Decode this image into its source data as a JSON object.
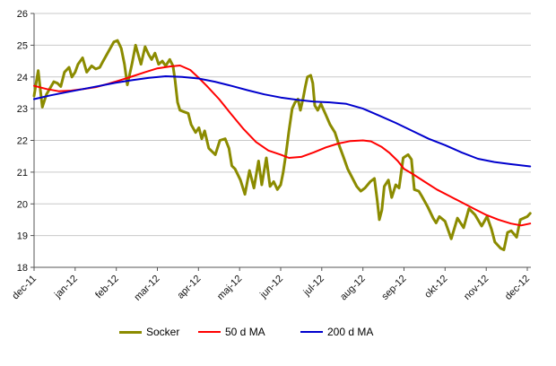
{
  "chart_data": {
    "type": "line",
    "x_axis": {
      "categories": [
        "dec-11",
        "jan-12",
        "feb-12",
        "mar-12",
        "apr-12",
        "maj-12",
        "jun-12",
        "jul-12",
        "aug-12",
        "sep-12",
        "okt-12",
        "nov-12",
        "dec-12"
      ]
    },
    "y_axis": {
      "min": 18,
      "max": 26,
      "step": 1,
      "ticks": [
        18,
        19,
        20,
        21,
        22,
        23,
        24,
        25,
        26
      ]
    },
    "grid": true,
    "legend_position": "bottom",
    "colors": {
      "grid": "#c9c9c9",
      "axis": "#555555"
    },
    "series": [
      {
        "name": "Socker",
        "color": "#8B8B00",
        "stroke_width": 3,
        "points": [
          [
            0,
            23.4
          ],
          [
            0.06,
            23.9
          ],
          [
            0.1,
            24.2
          ],
          [
            0.2,
            23.05
          ],
          [
            0.3,
            23.45
          ],
          [
            0.48,
            23.85
          ],
          [
            0.57,
            23.8
          ],
          [
            0.65,
            23.7
          ],
          [
            0.74,
            24.15
          ],
          [
            0.85,
            24.3
          ],
          [
            0.92,
            24.0
          ],
          [
            1.0,
            24.15
          ],
          [
            1.07,
            24.4
          ],
          [
            1.18,
            24.6
          ],
          [
            1.28,
            24.15
          ],
          [
            1.4,
            24.35
          ],
          [
            1.5,
            24.25
          ],
          [
            1.6,
            24.3
          ],
          [
            1.68,
            24.5
          ],
          [
            1.81,
            24.8
          ],
          [
            1.94,
            25.1
          ],
          [
            2.03,
            25.15
          ],
          [
            2.12,
            24.9
          ],
          [
            2.2,
            24.4
          ],
          [
            2.27,
            23.75
          ],
          [
            2.38,
            24.4
          ],
          [
            2.47,
            25.0
          ],
          [
            2.6,
            24.4
          ],
          [
            2.7,
            24.95
          ],
          [
            2.79,
            24.7
          ],
          [
            2.86,
            24.55
          ],
          [
            2.94,
            24.75
          ],
          [
            3.03,
            24.4
          ],
          [
            3.12,
            24.5
          ],
          [
            3.2,
            24.35
          ],
          [
            3.3,
            24.55
          ],
          [
            3.38,
            24.35
          ],
          [
            3.43,
            23.9
          ],
          [
            3.49,
            23.2
          ],
          [
            3.55,
            22.95
          ],
          [
            3.65,
            22.9
          ],
          [
            3.75,
            22.85
          ],
          [
            3.82,
            22.5
          ],
          [
            3.93,
            22.25
          ],
          [
            4.01,
            22.4
          ],
          [
            4.08,
            22.05
          ],
          [
            4.15,
            22.3
          ],
          [
            4.25,
            21.75
          ],
          [
            4.41,
            21.55
          ],
          [
            4.52,
            22.0
          ],
          [
            4.65,
            22.05
          ],
          [
            4.74,
            21.75
          ],
          [
            4.81,
            21.2
          ],
          [
            4.89,
            21.1
          ],
          [
            5.02,
            20.75
          ],
          [
            5.13,
            20.3
          ],
          [
            5.24,
            21.05
          ],
          [
            5.35,
            20.5
          ],
          [
            5.46,
            21.35
          ],
          [
            5.54,
            20.6
          ],
          [
            5.65,
            21.45
          ],
          [
            5.74,
            20.55
          ],
          [
            5.83,
            20.7
          ],
          [
            5.92,
            20.45
          ],
          [
            6.0,
            20.6
          ],
          [
            6.06,
            21.0
          ],
          [
            6.13,
            21.6
          ],
          [
            6.2,
            22.3
          ],
          [
            6.28,
            23.0
          ],
          [
            6.35,
            23.2
          ],
          [
            6.42,
            23.3
          ],
          [
            6.48,
            22.95
          ],
          [
            6.55,
            23.35
          ],
          [
            6.6,
            23.7
          ],
          [
            6.65,
            24.0
          ],
          [
            6.73,
            24.05
          ],
          [
            6.78,
            23.8
          ],
          [
            6.83,
            23.1
          ],
          [
            6.9,
            22.95
          ],
          [
            6.98,
            23.15
          ],
          [
            7.1,
            22.8
          ],
          [
            7.2,
            22.5
          ],
          [
            7.32,
            22.25
          ],
          [
            7.42,
            21.85
          ],
          [
            7.52,
            21.5
          ],
          [
            7.63,
            21.1
          ],
          [
            7.75,
            20.8
          ],
          [
            7.85,
            20.55
          ],
          [
            7.95,
            20.4
          ],
          [
            8.05,
            20.5
          ],
          [
            8.18,
            20.7
          ],
          [
            8.28,
            20.8
          ],
          [
            8.35,
            20.1
          ],
          [
            8.4,
            19.5
          ],
          [
            8.46,
            19.8
          ],
          [
            8.52,
            20.55
          ],
          [
            8.62,
            20.75
          ],
          [
            8.7,
            20.2
          ],
          [
            8.8,
            20.6
          ],
          [
            8.88,
            20.5
          ],
          [
            8.98,
            21.45
          ],
          [
            9.1,
            21.55
          ],
          [
            9.18,
            21.4
          ],
          [
            9.25,
            20.45
          ],
          [
            9.36,
            20.4
          ],
          [
            9.43,
            20.25
          ],
          [
            9.58,
            19.9
          ],
          [
            9.71,
            19.55
          ],
          [
            9.78,
            19.4
          ],
          [
            9.86,
            19.6
          ],
          [
            10.0,
            19.45
          ],
          [
            10.15,
            18.9
          ],
          [
            10.3,
            19.55
          ],
          [
            10.45,
            19.25
          ],
          [
            10.58,
            19.85
          ],
          [
            10.73,
            19.65
          ],
          [
            10.89,
            19.3
          ],
          [
            11.02,
            19.6
          ],
          [
            11.13,
            19.2
          ],
          [
            11.21,
            18.8
          ],
          [
            11.35,
            18.6
          ],
          [
            11.43,
            18.55
          ],
          [
            11.52,
            19.1
          ],
          [
            11.61,
            19.15
          ],
          [
            11.74,
            18.95
          ],
          [
            11.83,
            19.5
          ],
          [
            11.91,
            19.55
          ],
          [
            12.0,
            19.6
          ],
          [
            12.07,
            19.7
          ]
        ]
      },
      {
        "name": "50 d MA",
        "color": "#FF0000",
        "stroke_width": 2,
        "points": [
          [
            0,
            23.72
          ],
          [
            0.3,
            23.62
          ],
          [
            0.6,
            23.55
          ],
          [
            0.9,
            23.57
          ],
          [
            1.2,
            23.62
          ],
          [
            1.5,
            23.68
          ],
          [
            1.8,
            23.78
          ],
          [
            2.1,
            23.9
          ],
          [
            2.4,
            24.02
          ],
          [
            2.7,
            24.15
          ],
          [
            3.0,
            24.27
          ],
          [
            3.3,
            24.33
          ],
          [
            3.55,
            24.36
          ],
          [
            3.8,
            24.22
          ],
          [
            4.0,
            23.98
          ],
          [
            4.2,
            23.72
          ],
          [
            4.5,
            23.3
          ],
          [
            4.8,
            22.82
          ],
          [
            5.1,
            22.35
          ],
          [
            5.4,
            21.95
          ],
          [
            5.7,
            21.68
          ],
          [
            6.0,
            21.55
          ],
          [
            6.2,
            21.45
          ],
          [
            6.5,
            21.48
          ],
          [
            6.8,
            21.62
          ],
          [
            7.1,
            21.78
          ],
          [
            7.4,
            21.9
          ],
          [
            7.7,
            21.98
          ],
          [
            8.0,
            22.0
          ],
          [
            8.2,
            21.97
          ],
          [
            8.45,
            21.8
          ],
          [
            8.65,
            21.6
          ],
          [
            8.85,
            21.35
          ],
          [
            9.0,
            21.1
          ],
          [
            9.2,
            20.95
          ],
          [
            9.5,
            20.7
          ],
          [
            9.8,
            20.45
          ],
          [
            10.1,
            20.25
          ],
          [
            10.4,
            20.05
          ],
          [
            10.7,
            19.85
          ],
          [
            11.0,
            19.65
          ],
          [
            11.3,
            19.5
          ],
          [
            11.6,
            19.38
          ],
          [
            11.85,
            19.32
          ],
          [
            12.07,
            19.38
          ]
        ]
      },
      {
        "name": "200 d MA",
        "color": "#0000CD",
        "stroke_width": 2,
        "points": [
          [
            0,
            23.3
          ],
          [
            0.4,
            23.42
          ],
          [
            0.8,
            23.52
          ],
          [
            1.2,
            23.62
          ],
          [
            1.6,
            23.72
          ],
          [
            2.0,
            23.82
          ],
          [
            2.4,
            23.9
          ],
          [
            2.8,
            23.97
          ],
          [
            3.2,
            24.02
          ],
          [
            3.6,
            24.0
          ],
          [
            4.0,
            23.95
          ],
          [
            4.4,
            23.85
          ],
          [
            4.8,
            23.72
          ],
          [
            5.2,
            23.58
          ],
          [
            5.6,
            23.45
          ],
          [
            6.0,
            23.35
          ],
          [
            6.4,
            23.28
          ],
          [
            6.8,
            23.22
          ],
          [
            7.2,
            23.2
          ],
          [
            7.6,
            23.15
          ],
          [
            8.0,
            23.0
          ],
          [
            8.4,
            22.78
          ],
          [
            8.8,
            22.55
          ],
          [
            9.2,
            22.3
          ],
          [
            9.6,
            22.05
          ],
          [
            10.0,
            21.85
          ],
          [
            10.4,
            21.62
          ],
          [
            10.8,
            21.42
          ],
          [
            11.2,
            21.32
          ],
          [
            11.6,
            21.25
          ],
          [
            12.07,
            21.18
          ]
        ]
      }
    ]
  }
}
